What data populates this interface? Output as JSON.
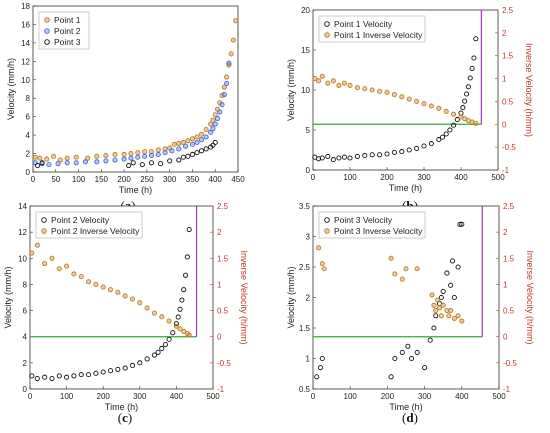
{
  "chart_data": [
    {
      "id": "a",
      "type": "scatter",
      "caption": "a",
      "xlabel": "Time (h)",
      "ylabel": "Velocity (mm/h)",
      "xlim": [
        0,
        450
      ],
      "ylim": [
        0,
        18
      ],
      "xticks": [
        "0",
        "50",
        "100",
        "150",
        "200",
        "250",
        "300",
        "350",
        "400",
        "450"
      ],
      "yticks": [
        "0",
        "2",
        "4",
        "6",
        "8",
        "10",
        "12",
        "14",
        "16",
        "18"
      ],
      "legend_position": "top-left",
      "series": [
        {
          "name": "Point 1",
          "color": "#d9534f",
          "x": [
            5,
            15,
            30,
            45,
            60,
            75,
            95,
            120,
            140,
            160,
            180,
            200,
            215,
            230,
            245,
            260,
            275,
            290,
            300,
            310,
            320,
            330,
            340,
            350,
            360,
            370,
            380,
            390,
            395,
            400,
            405,
            410,
            415,
            420,
            425,
            430,
            435,
            440,
            445
          ],
          "y": [
            1.6,
            1.5,
            1.4,
            1.7,
            1.3,
            1.5,
            1.6,
            1.5,
            1.7,
            1.8,
            1.9,
            1.9,
            2.0,
            2.1,
            2.2,
            2.2,
            2.4,
            2.5,
            2.6,
            3.0,
            3.1,
            3.2,
            3.4,
            3.6,
            3.8,
            4.1,
            4.6,
            5.2,
            5.6,
            6.2,
            6.8,
            7.5,
            8.3,
            9.2,
            10.3,
            11.6,
            12.8,
            14.3,
            16.4
          ]
        },
        {
          "name": "Point 2",
          "color": "#4466dd",
          "x": [
            5,
            20,
            35,
            55,
            75,
            95,
            115,
            140,
            160,
            180,
            200,
            215,
            230,
            245,
            260,
            275,
            290,
            305,
            320,
            335,
            350,
            360,
            370,
            380,
            390,
            395,
            400,
            405,
            410,
            415,
            420,
            425,
            430
          ],
          "y": [
            1.0,
            0.9,
            0.8,
            0.9,
            1.0,
            1.0,
            1.1,
            1.1,
            1.2,
            1.3,
            1.4,
            1.5,
            1.6,
            1.7,
            1.8,
            1.9,
            2.1,
            2.3,
            2.5,
            2.8,
            3.0,
            3.2,
            3.5,
            3.8,
            4.3,
            4.7,
            5.2,
            5.8,
            6.5,
            7.3,
            8.4,
            9.6,
            11.8
          ]
        },
        {
          "name": "Point 3",
          "color": "#111111",
          "x": [
            10,
            20,
            210,
            220,
            240,
            260,
            280,
            300,
            320,
            330,
            340,
            350,
            360,
            370,
            380,
            390,
            395,
            400
          ],
          "y": [
            0.7,
            1.0,
            0.7,
            1.0,
            0.8,
            1.0,
            0.9,
            1.2,
            1.3,
            1.6,
            1.7,
            1.9,
            2.1,
            2.3,
            2.5,
            2.7,
            2.9,
            3.2
          ]
        }
      ]
    },
    {
      "id": "b",
      "type": "scatter",
      "caption": "b",
      "xlabel": "Time (h)",
      "ylabel": "Velocity (mm/h)",
      "y2label": "Inverse Velocity (h/mm)",
      "xlim": [
        0,
        500
      ],
      "ylim": [
        0,
        20
      ],
      "y2lim": [
        -1,
        2.5
      ],
      "xticks": [
        "0",
        "100",
        "200",
        "300",
        "400",
        "500"
      ],
      "yticks": [
        "0",
        "5",
        "10",
        "15",
        "20"
      ],
      "y2ticks": [
        "-1",
        "-0.5",
        "0",
        "0.5",
        "1",
        "1.5",
        "2",
        "2.5"
      ],
      "legend_position": "top-left",
      "green_line_y2": 0,
      "purple_line_x": 455,
      "series": [
        {
          "name": "Point 1 Velocity",
          "color": "#111111",
          "axis": "left",
          "x": [
            5,
            15,
            25,
            40,
            55,
            70,
            85,
            100,
            120,
            140,
            160,
            180,
            200,
            220,
            240,
            260,
            280,
            300,
            320,
            340,
            350,
            360,
            370,
            380,
            390,
            400,
            405,
            410,
            415,
            420,
            425,
            430,
            435,
            440
          ],
          "y": [
            1.6,
            1.4,
            1.5,
            1.7,
            1.3,
            1.5,
            1.6,
            1.5,
            1.7,
            1.8,
            1.9,
            1.9,
            2.0,
            2.2,
            2.3,
            2.5,
            2.7,
            3.0,
            3.3,
            3.8,
            4.1,
            4.5,
            5.0,
            5.6,
            6.3,
            7.1,
            7.8,
            8.6,
            9.5,
            10.4,
            11.5,
            12.7,
            14.0,
            16.4
          ]
        },
        {
          "name": "Point 1 Inverse Velocity",
          "color": "#d9534f",
          "axis": "right",
          "x": [
            5,
            15,
            25,
            40,
            55,
            70,
            85,
            100,
            120,
            140,
            160,
            180,
            200,
            220,
            240,
            260,
            280,
            300,
            320,
            340,
            360,
            380,
            400,
            410,
            420,
            430,
            440
          ],
          "y": [
            1.0,
            0.95,
            1.05,
            0.9,
            0.95,
            0.85,
            0.9,
            0.85,
            0.8,
            0.78,
            0.75,
            0.72,
            0.7,
            0.65,
            0.6,
            0.55,
            0.5,
            0.45,
            0.4,
            0.35,
            0.28,
            0.22,
            0.16,
            0.12,
            0.08,
            0.05,
            0.02
          ]
        }
      ]
    },
    {
      "id": "c",
      "type": "scatter",
      "caption": "c",
      "xlabel": "Time (h)",
      "ylabel": "Velocity (mm/h)",
      "y2label": "Inverse Velocity (h/mm)",
      "xlim": [
        0,
        500
      ],
      "ylim": [
        0,
        14
      ],
      "y2lim": [
        -1,
        2.5
      ],
      "xticks": [
        "0",
        "100",
        "200",
        "300",
        "400",
        "500"
      ],
      "yticks": [
        "0",
        "2",
        "4",
        "6",
        "8",
        "10",
        "12",
        "14"
      ],
      "y2ticks": [
        "-1",
        "-0.5",
        "0",
        "0.5",
        "1",
        "1.5",
        "2",
        "2.5"
      ],
      "legend_position": "top-left",
      "green_line_y2": 0,
      "purple_line_x": 455,
      "series": [
        {
          "name": "Point 2 Velocity",
          "color": "#111111",
          "axis": "left",
          "x": [
            5,
            20,
            40,
            60,
            80,
            100,
            120,
            140,
            160,
            180,
            200,
            220,
            240,
            260,
            280,
            300,
            320,
            340,
            350,
            360,
            370,
            380,
            390,
            400,
            405,
            410,
            415,
            420,
            425,
            430,
            435
          ],
          "y": [
            1.0,
            0.8,
            0.9,
            0.8,
            1.0,
            0.9,
            1.0,
            1.1,
            1.1,
            1.2,
            1.3,
            1.4,
            1.5,
            1.6,
            1.8,
            2.0,
            2.3,
            2.6,
            2.8,
            3.1,
            3.4,
            3.8,
            4.3,
            5.0,
            5.5,
            6.1,
            6.8,
            7.6,
            8.7,
            10.1,
            12.2
          ]
        },
        {
          "name": "Point 2 Inverse Velocity",
          "color": "#d9534f",
          "axis": "right",
          "x": [
            5,
            20,
            40,
            60,
            80,
            100,
            120,
            140,
            160,
            180,
            200,
            220,
            240,
            260,
            280,
            300,
            320,
            340,
            360,
            380,
            400,
            410,
            420,
            430,
            435
          ],
          "y": [
            1.6,
            1.75,
            1.4,
            1.5,
            1.3,
            1.35,
            1.2,
            1.15,
            1.05,
            1.0,
            0.95,
            0.9,
            0.85,
            0.78,
            0.72,
            0.65,
            0.55,
            0.45,
            0.38,
            0.3,
            0.2,
            0.15,
            0.1,
            0.06,
            0.03
          ]
        }
      ]
    },
    {
      "id": "d",
      "type": "scatter",
      "caption": "d",
      "xlabel": "Time (h)",
      "ylabel": "Velocity (mm/h)",
      "y2label": "Inverse Velocity (h/mm)",
      "xlim": [
        0,
        500
      ],
      "ylim": [
        0.5,
        3.5
      ],
      "y2lim": [
        -1,
        2.5
      ],
      "xticks": [
        "0",
        "100",
        "200",
        "300",
        "400",
        "500"
      ],
      "yticks": [
        "0.5",
        "1",
        "1.5",
        "2",
        "2.5",
        "3",
        "3.5"
      ],
      "y2ticks": [
        "-1",
        "-0.5",
        "0",
        "0.5",
        "1",
        "1.5",
        "2",
        "2.5"
      ],
      "legend_position": "top-left",
      "green_line_y2": 0,
      "purple_line_x": 455,
      "series": [
        {
          "name": "Point 3 Velocity",
          "color": "#111111",
          "axis": "left",
          "x": [
            10,
            20,
            25,
            210,
            220,
            240,
            255,
            265,
            280,
            300,
            315,
            325,
            330,
            340,
            345,
            350,
            360,
            370,
            375,
            380,
            390,
            395,
            400
          ],
          "y": [
            0.7,
            0.85,
            1.0,
            0.7,
            1.0,
            1.1,
            1.2,
            1.0,
            1.1,
            0.85,
            1.3,
            1.5,
            1.7,
            1.9,
            2.0,
            2.1,
            2.4,
            2.2,
            2.6,
            2.0,
            2.5,
            3.2,
            3.2
          ]
        },
        {
          "name": "Point 3 Inverse Velocity",
          "color": "#d9534f",
          "axis": "right",
          "x": [
            15,
            25,
            30,
            210,
            220,
            240,
            250,
            280,
            320,
            325,
            330,
            335,
            340,
            345,
            350,
            360,
            365,
            370,
            380,
            390,
            400
          ],
          "y": [
            1.7,
            1.4,
            1.3,
            1.5,
            1.2,
            1.1,
            1.3,
            1.3,
            0.8,
            0.6,
            0.5,
            0.7,
            0.55,
            0.4,
            0.6,
            0.5,
            0.4,
            0.5,
            0.35,
            0.4,
            0.3
          ]
        }
      ]
    }
  ]
}
